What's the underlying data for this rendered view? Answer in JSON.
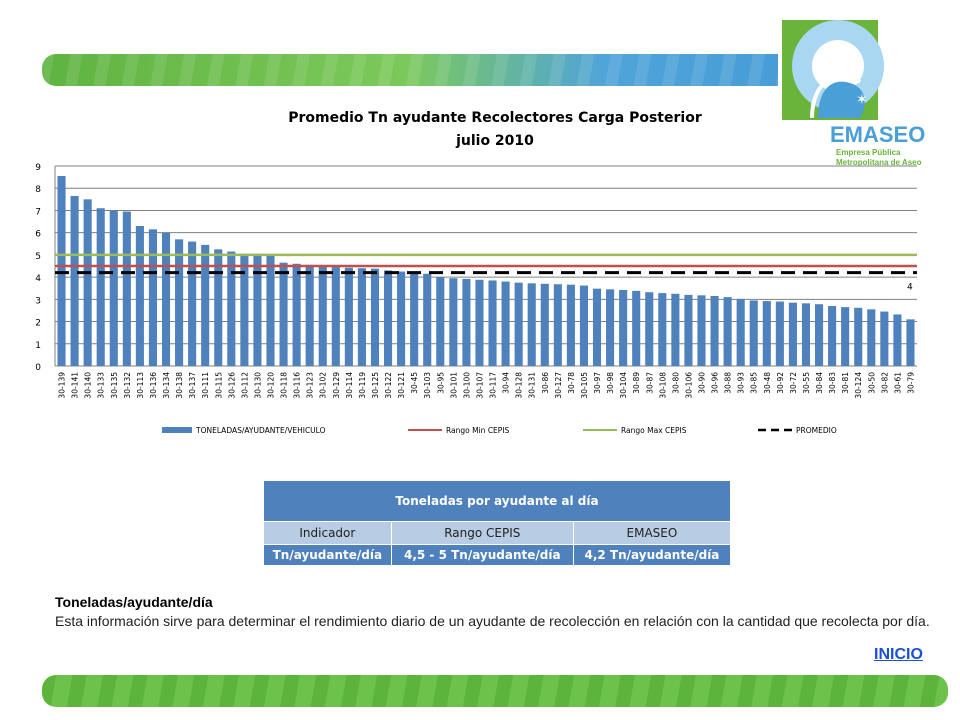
{
  "logo": {
    "brand": "EMASEO",
    "tagline_line1": "Empresa Pública",
    "tagline_line2": "Metropolitana de Aseo",
    "colors": {
      "green": "#6ab43b",
      "blue": "#4a9fd6",
      "light_blue": "#a9d6f0"
    }
  },
  "chart_data": {
    "type": "bar",
    "title": "Promedio Tn ayudante Recolectores Carga Posterior",
    "subtitle": "julio 2010",
    "categories": [
      "30-139",
      "30-141",
      "30-140",
      "30-133",
      "30-135",
      "30-132",
      "30-113",
      "30-136",
      "30-134",
      "30-138",
      "30-137",
      "30-111",
      "30-115",
      "30-126",
      "30-112",
      "30-130",
      "30-120",
      "30-118",
      "30-116",
      "30-123",
      "30-102",
      "30-129",
      "30-114",
      "30-119",
      "30-125",
      "30-122",
      "30-121",
      "30-45",
      "30-103",
      "30-95",
      "30-101",
      "30-100",
      "30-107",
      "30-117",
      "30-94",
      "30-128",
      "30-131",
      "30-86",
      "30-127",
      "30-78",
      "30-105",
      "30-97",
      "30-98",
      "30-104",
      "30-89",
      "30-87",
      "30-108",
      "30-80",
      "30-106",
      "30-90",
      "30-96",
      "30-88",
      "30-93",
      "30-85",
      "30-48",
      "30-92",
      "30-72",
      "30-55",
      "30-84",
      "30-83",
      "30-81",
      "30-124",
      "30-50",
      "30-82",
      "30-61",
      "30-79"
    ],
    "series": [
      {
        "name": "TONELADAS/AYUDANTE/VEHICULO",
        "color": "#4f81bd",
        "values": [
          8.55,
          7.65,
          7.5,
          7.1,
          7.0,
          6.95,
          6.3,
          6.15,
          6.0,
          5.7,
          5.6,
          5.45,
          5.25,
          5.15,
          5.05,
          5.05,
          4.95,
          4.65,
          4.6,
          4.55,
          4.5,
          4.45,
          4.42,
          4.4,
          4.38,
          4.3,
          4.25,
          4.2,
          4.15,
          4.0,
          3.95,
          3.92,
          3.88,
          3.85,
          3.8,
          3.75,
          3.72,
          3.7,
          3.68,
          3.66,
          3.62,
          3.48,
          3.45,
          3.42,
          3.38,
          3.32,
          3.28,
          3.25,
          3.2,
          3.18,
          3.15,
          3.1,
          3.02,
          2.95,
          2.92,
          2.9,
          2.85,
          2.82,
          2.78,
          2.7,
          2.65,
          2.62,
          2.55,
          2.45,
          2.32,
          2.1
        ]
      }
    ],
    "reference_lines": [
      {
        "name": "Rango Min CEPIS",
        "value": 4.5,
        "color": "#c0504d",
        "style": "solid"
      },
      {
        "name": "Rango Max CEPIS",
        "value": 5.0,
        "color": "#9bbb59",
        "style": "solid"
      },
      {
        "name": "PROMEDIO",
        "value": 4.2,
        "color": "#000000",
        "style": "dashed"
      }
    ],
    "annotation": "4",
    "ylim": [
      0,
      9
    ],
    "yticks": [
      "0",
      "1",
      "2",
      "3",
      "4",
      "5",
      "6",
      "7",
      "8",
      "9"
    ],
    "grid": true,
    "legend_position": "bottom"
  },
  "table": {
    "title": "Toneladas por ayudante al día",
    "headers": [
      "Indicador",
      "Rango CEPIS",
      "EMASEO"
    ],
    "row": [
      "Tn/ayudante/día",
      "4,5 - 5 Tn/ayudante/día",
      "4,2 Tn/ayudante/día"
    ]
  },
  "description": {
    "title": "Toneladas/ayudante/día",
    "text": "Esta información sirve para determinar el rendimiento diario de un ayudante de recolección en relación con la cantidad que recolecta por día."
  },
  "nav": {
    "inicio_label": "INICIO"
  }
}
